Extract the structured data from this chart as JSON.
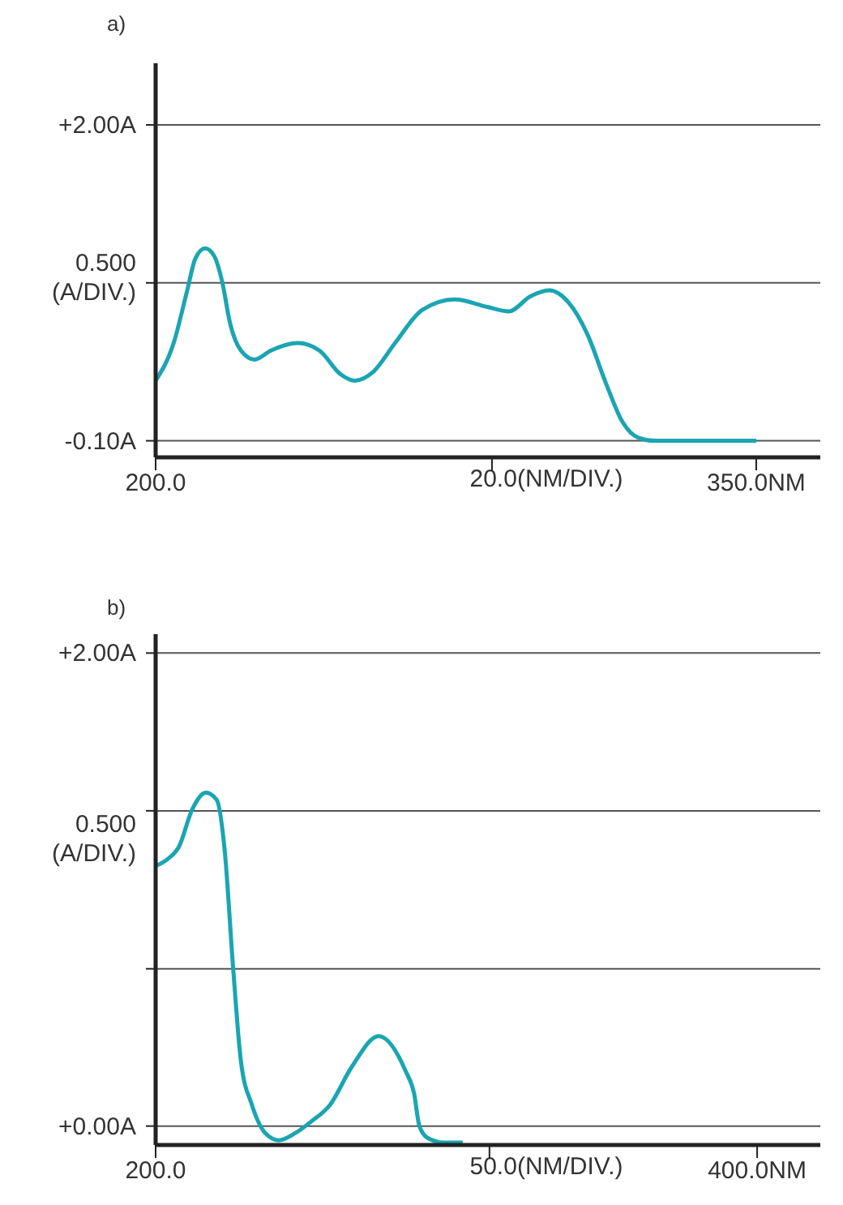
{
  "chart_data": [
    {
      "type": "line",
      "title": "a)",
      "x": [
        200,
        204.5,
        207.8,
        209.9,
        212.3,
        214.6,
        216.6,
        218.6,
        221.3,
        224.7,
        228.8,
        235.5,
        240.9,
        246.3,
        249.7,
        254.4,
        259.8,
        266.6,
        274.7,
        282.8,
        288.2,
        293.6,
        298.3,
        303.1,
        307.8,
        312.5,
        316.5,
        320.6,
        324.6,
        350
      ],
      "series": [
        {
          "color": "#1aa5b2",
          "values": [
            0.3,
            0.55,
            0.89,
            1.11,
            1.18,
            1.13,
            0.96,
            0.68,
            0.5,
            0.44,
            0.5,
            0.55,
            0.5,
            0.34,
            0.3,
            0.36,
            0.55,
            0.77,
            0.84,
            0.79,
            0.76,
            0.86,
            0.9,
            0.82,
            0.61,
            0.28,
            0.03,
            -0.08,
            -0.1,
            -0.1
          ]
        }
      ],
      "xlim": [
        200,
        366
      ],
      "xticks": [
        {
          "value": 200,
          "label": "200.0"
        },
        {
          "value": 284,
          "label": null
        },
        {
          "value": 350,
          "label": "350.0NM"
        }
      ],
      "ylim": [
        -0.21,
        2.41
      ],
      "yticks": [
        {
          "value": -0.1,
          "label": "-0.10A"
        },
        {
          "value": 0.95,
          "label": null
        },
        {
          "value": 2.0,
          "label": "+2.00A"
        }
      ],
      "grid": "y",
      "xlabel": "20.0(NM/DIV.)",
      "ylabel": "0.500 (A/DIV.)"
    },
    {
      "type": "line",
      "title": "b)",
      "x": [
        200,
        204.1,
        207.7,
        212.2,
        216.7,
        220.3,
        223.0,
        225.7,
        228.4,
        232.0,
        236.5,
        241.0,
        246.4,
        251.8,
        258.0,
        265.2,
        274.2,
        283.2,
        285.9,
        287.7,
        290.4,
        295.8,
        302.1
      ],
      "series": [
        {
          "color": "#1aa5b2",
          "values": [
            1.1,
            1.13,
            1.18,
            1.34,
            1.41,
            1.38,
            1.16,
            0.68,
            0.27,
            0.09,
            -0.03,
            -0.06,
            -0.03,
            0.02,
            0.09,
            0.25,
            0.38,
            0.23,
            0.14,
            0.0,
            -0.05,
            -0.07,
            -0.07
          ]
        }
      ],
      "xlim": [
        200,
        421
      ],
      "xticks": [
        {
          "value": 200,
          "label": "200.0"
        },
        {
          "value": 311,
          "label": null
        },
        {
          "value": 400,
          "label": "400.0NM"
        }
      ],
      "ylim": [
        -0.08,
        2.08
      ],
      "yticks": [
        {
          "value": 0,
          "label": "+0.00A"
        },
        {
          "value": 0.665,
          "label": null
        },
        {
          "value": 1.333,
          "label": null
        },
        {
          "value": 2.0,
          "label": "+2.00A"
        }
      ],
      "grid": "y",
      "xlabel": "50.0(NM/DIV.)",
      "ylabel": "0.500 (A/DIV.)"
    }
  ]
}
